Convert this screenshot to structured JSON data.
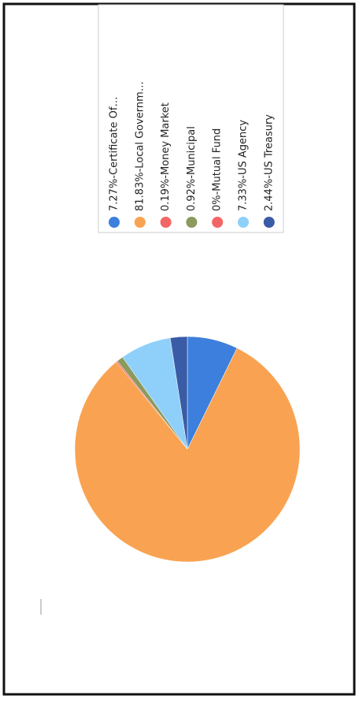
{
  "chart_data": {
    "type": "pie",
    "categories": [
      "7.27%-Certificate Of…",
      "81.83%-Local Governm…",
      "0.19%-Money Market",
      "0.92%-Municipal",
      "0%-Mutual Fund",
      "7.33%-US Agency",
      "2.44%-US Treasury"
    ],
    "values": [
      7.27,
      81.83,
      0.19,
      0.92,
      0,
      7.33,
      2.44
    ],
    "colors": [
      "#3d7fdc",
      "#f9a352",
      "#f26666",
      "#8c9a5c",
      "#f26666",
      "#8fd0fb",
      "#3a5ca6"
    ],
    "legend": "top-right"
  }
}
